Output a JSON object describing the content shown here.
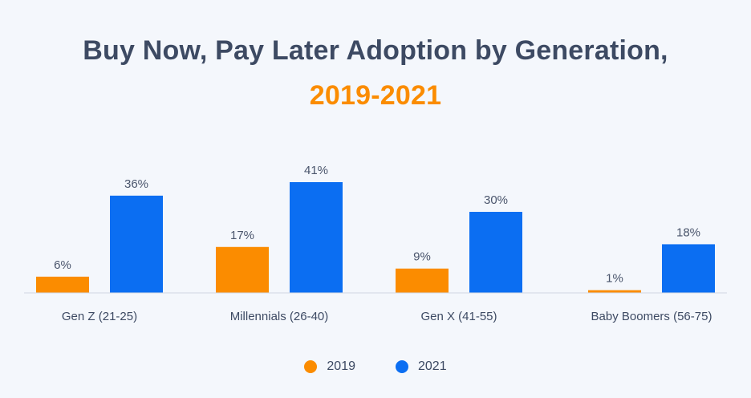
{
  "chart_data": {
    "type": "bar",
    "title": "Buy Now, Pay Later Adoption by Generation,",
    "subtitle": "2019-2021",
    "categories": [
      "Gen Z (21-25)",
      "Millennials (26-40)",
      "Gen X (41-55)",
      "Baby Boomers (56-75)"
    ],
    "series": [
      {
        "name": "2019",
        "color": "#fb8c00",
        "values": [
          6,
          17,
          9,
          1
        ],
        "labels": [
          "6%",
          "17%",
          "9%",
          "1%"
        ]
      },
      {
        "name": "2021",
        "color": "#0b6ef2",
        "values": [
          36,
          41,
          30,
          18
        ],
        "labels": [
          "36%",
          "41%",
          "30%",
          "18%"
        ]
      }
    ],
    "ylim": [
      0,
      41
    ],
    "grid": false,
    "legend": "bottom-center"
  }
}
